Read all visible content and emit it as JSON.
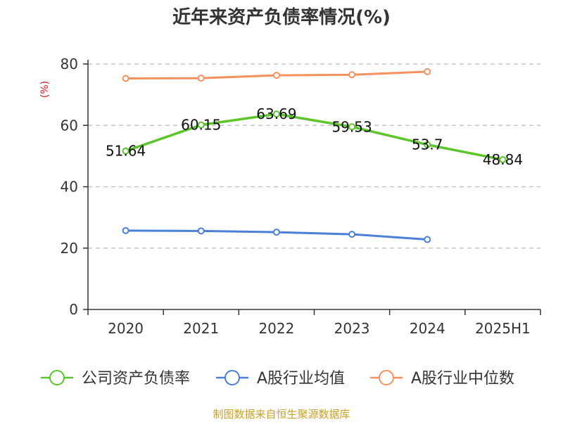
{
  "chart_data": {
    "type": "line",
    "title": "近年来资产负债率情况(%)",
    "ylabel": "(%)",
    "xlabel": "",
    "categories": [
      "2020",
      "2021",
      "2022",
      "2023",
      "2024",
      "2025H1"
    ],
    "ylim": [
      0,
      80
    ],
    "yticks": [
      0,
      20,
      40,
      60,
      80
    ],
    "grid": true,
    "legend_position": "bottom",
    "series": [
      {
        "name": "公司资产负债率",
        "color": "#5cc52a",
        "values": [
          51.64,
          60.15,
          63.69,
          59.53,
          53.7,
          48.84
        ],
        "labels": [
          "51.64",
          "60.15",
          "63.69",
          "59.53",
          "53.7",
          "48.84"
        ]
      },
      {
        "name": "A股行业均值",
        "color": "#4b7fd8",
        "values": [
          25.7,
          25.6,
          25.2,
          24.5,
          22.8,
          null
        ]
      },
      {
        "name": "A股行业中位数",
        "color": "#f7905d",
        "values": [
          75.3,
          75.4,
          76.3,
          76.5,
          77.5,
          null
        ]
      }
    ],
    "source": "制图数据来自恒生聚源数据库",
    "colors": {
      "axis": "#333333",
      "grid": "#bbbbbb",
      "ylabel": "#d9161c",
      "source": "#c9a227"
    }
  }
}
